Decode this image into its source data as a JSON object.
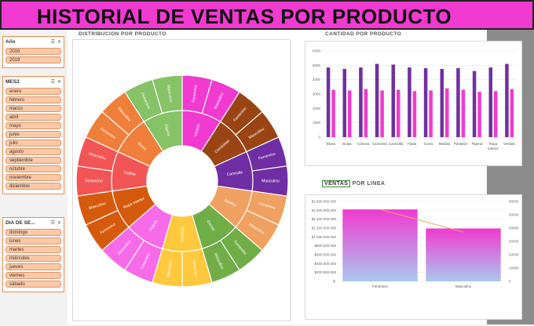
{
  "header": {
    "title": "HISTORIAL DE VENTAS POR PRODUCTO"
  },
  "slicers": {
    "anio": {
      "title": "Año",
      "items": [
        "2016",
        "2019"
      ]
    },
    "mes": {
      "title": "MES2",
      "items": [
        "enero",
        "febrero",
        "marzo",
        "abril",
        "mayo",
        "junio",
        "julio",
        "agosto",
        "septiembre",
        "octubre",
        "noviembre",
        "diciembre"
      ]
    },
    "dia": {
      "title": "DIA DE SE...",
      "items": [
        "domingo",
        "lunes",
        "martes",
        "miércoles",
        "jueves",
        "viernes",
        "sábado"
      ]
    }
  },
  "sunburst": {
    "label": "DISTRIBUCION POR PRODUCTO",
    "inner": [
      {
        "name": "Vestido",
        "color": "#f03ad0"
      },
      {
        "name": "Camisetas",
        "color": "#9b4413"
      },
      {
        "name": "Camisilla",
        "color": "#6f2ea3"
      },
      {
        "name": "Medias",
        "color": "#f0a060"
      },
      {
        "name": "Gorras",
        "color": "#70ad47"
      },
      {
        "name": "Pantalón",
        "color": "#ffc83d"
      },
      {
        "name": "Pijama",
        "color": "#f76ae8"
      },
      {
        "name": "Ropa Interior",
        "color": "#d65a0c"
      },
      {
        "name": "Faldas",
        "color": "#f25555"
      },
      {
        "name": "Blusa",
        "color": "#ef7f3a"
      },
      {
        "name": "Pijama",
        "color": "#86c266"
      }
    ],
    "outer": [
      {
        "name": "Femenino",
        "color": "#f03ad0"
      },
      {
        "name": "Masculino",
        "color": "#f03ad0"
      },
      {
        "name": "Femenino",
        "color": "#9b4413"
      },
      {
        "name": "Masculino",
        "color": "#9b4413"
      },
      {
        "name": "Femenino",
        "color": "#6f2ea3"
      },
      {
        "name": "Masculino",
        "color": "#6f2ea3"
      },
      {
        "name": "Femenino",
        "color": "#f0a060"
      },
      {
        "name": "Masculino",
        "color": "#f0a060"
      },
      {
        "name": "Femenino",
        "color": "#70ad47"
      },
      {
        "name": "Masculino",
        "color": "#70ad47"
      },
      {
        "name": "Femenino",
        "color": "#ffc83d"
      },
      {
        "name": "Masculino",
        "color": "#ffc83d"
      },
      {
        "name": "Femenino",
        "color": "#f76ae8"
      },
      {
        "name": "Masculino",
        "color": "#f76ae8"
      },
      {
        "name": "Femenino",
        "color": "#d65a0c"
      },
      {
        "name": "Masculino",
        "color": "#d65a0c"
      },
      {
        "name": "Femenino",
        "color": "#f25555"
      },
      {
        "name": "Masculino",
        "color": "#f25555"
      },
      {
        "name": "Femenino",
        "color": "#ef7f3a"
      },
      {
        "name": "Masculino",
        "color": "#ef7f3a"
      },
      {
        "name": "Femenino",
        "color": "#86c266"
      },
      {
        "name": "Masculino",
        "color": "#86c266"
      }
    ]
  },
  "chart_data": [
    {
      "type": "bar",
      "title": "CANTIDAD POR PRODUCTO",
      "categories": [
        "Blusa",
        "Botas",
        "Camisa",
        "Camiseta",
        "Camisilla",
        "Falda",
        "Gorra",
        "Medias",
        "Pantalón",
        "Pijama",
        "Ropa Interior",
        "Vestido"
      ],
      "series": [
        {
          "values": [
            4850,
            4750,
            4850,
            5100,
            5050,
            4850,
            4800,
            4750,
            4800,
            4600,
            4850,
            5100
          ],
          "color": "#7030a0"
        },
        {
          "values": [
            3300,
            3250,
            3350,
            3250,
            3300,
            3200,
            3250,
            3400,
            3300,
            3150,
            3200,
            3350
          ],
          "color": "#f03ad0"
        }
      ],
      "ylim": [
        0,
        6000
      ],
      "yticks": [
        "0",
        "1000",
        "2000",
        "3000",
        "4000",
        "5000",
        "6000"
      ]
    },
    {
      "type": "bar",
      "title": "VENTAS POR LINEA",
      "title_boxed": "VENTAS",
      "title_rest": "POR LINEA",
      "categories": [
        "Femenino",
        "Masculino"
      ],
      "values": [
        1620000000,
        1190000000
      ],
      "line_values": [
        54000,
        37000
      ],
      "ylim": [
        0,
        1800000000
      ],
      "yticks": [
        "$-",
        "$200.000.000",
        "$400.000.000",
        "$600.000.000",
        "$800.000.000",
        "$1.000.000.000",
        "$1.200.000.000",
        "$1.400.000.000",
        "$1.600.000.000",
        "$1.800.000.000"
      ],
      "y2lim": [
        0,
        60000
      ],
      "y2ticks": [
        "0",
        "10000",
        "20000",
        "30000",
        "40000",
        "50000",
        "60000"
      ],
      "bar_color_top": "#f03ad0",
      "bar_color_bottom": "#a9c8ee",
      "line_color": "#f2a36b"
    }
  ]
}
